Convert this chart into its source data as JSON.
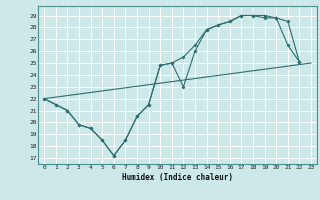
{
  "xlabel": "Humidex (Indice chaleur)",
  "bg_color": "#cce8e8",
  "grid_color": "#ffffff",
  "line_color": "#2d6e6e",
  "xlim": [
    -0.5,
    23.5
  ],
  "ylim": [
    16.5,
    29.8
  ],
  "xticks": [
    0,
    1,
    2,
    3,
    4,
    5,
    6,
    7,
    8,
    9,
    10,
    11,
    12,
    13,
    14,
    15,
    16,
    17,
    18,
    19,
    20,
    21,
    22,
    23
  ],
  "yticks": [
    17,
    18,
    19,
    20,
    21,
    22,
    23,
    24,
    25,
    26,
    27,
    28,
    29
  ],
  "line1_x": [
    0,
    1,
    2,
    3,
    4,
    5,
    6,
    7,
    8,
    9,
    10,
    11,
    12,
    13,
    14,
    15,
    16,
    17,
    18,
    19,
    20,
    21,
    22
  ],
  "line1_y": [
    22,
    21.5,
    21,
    19.8,
    19.5,
    18.5,
    17.2,
    18.5,
    20.5,
    21.5,
    24.8,
    25,
    23,
    26,
    27.8,
    28.2,
    28.5,
    29,
    29,
    29,
    28.8,
    26.5,
    25.1
  ],
  "line2_x": [
    0,
    1,
    2,
    3,
    4,
    5,
    6,
    7,
    8,
    9,
    10,
    11,
    12,
    13,
    14,
    15,
    16,
    17,
    18,
    19,
    20,
    21,
    22
  ],
  "line2_y": [
    22,
    21.5,
    21,
    19.8,
    19.5,
    18.5,
    17.2,
    18.5,
    20.5,
    21.5,
    24.8,
    25,
    25.5,
    26.5,
    27.8,
    28.2,
    28.5,
    29,
    29,
    28.8,
    28.8,
    28.5,
    25.1
  ],
  "line3_x": [
    0,
    23
  ],
  "line3_y": [
    22,
    25
  ]
}
